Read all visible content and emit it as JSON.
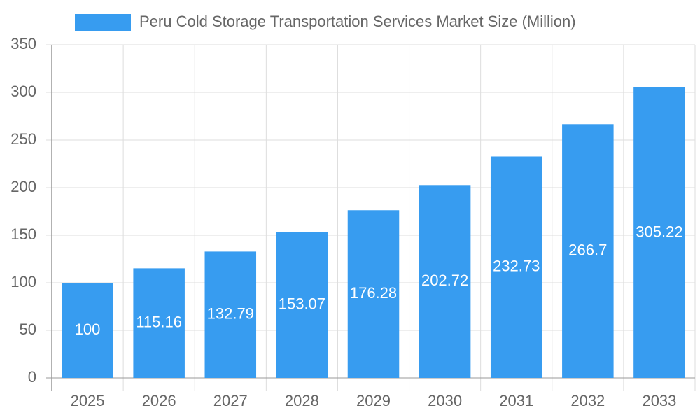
{
  "chart_data": {
    "type": "bar",
    "categories": [
      "2025",
      "2026",
      "2027",
      "2028",
      "2029",
      "2030",
      "2031",
      "2032",
      "2033"
    ],
    "series": [
      {
        "name": "Peru Cold Storage Transportation Services Market Size (Million)",
        "color": "#379cf0",
        "values": [
          100,
          115.16,
          132.79,
          153.07,
          176.28,
          202.72,
          232.73,
          266.7,
          305.22
        ]
      }
    ],
    "ylim": [
      0,
      350
    ],
    "yticks": [
      0,
      50,
      100,
      150,
      200,
      250,
      300,
      350
    ],
    "grid": true,
    "legend": "top"
  }
}
